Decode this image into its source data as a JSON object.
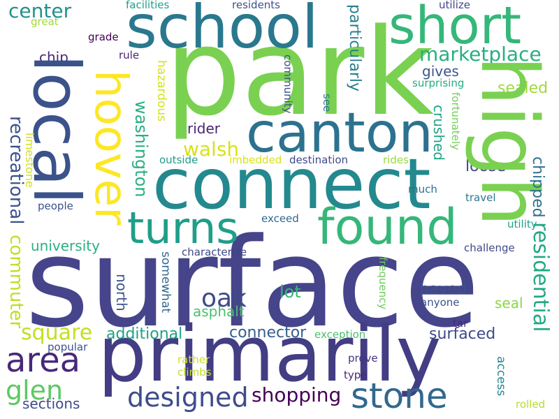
{
  "words": {
    "surface": {
      "text": "surface",
      "color": "#46448a"
    },
    "park": {
      "text": "park",
      "color": "#7ad151"
    },
    "connect": {
      "text": "connect",
      "color": "#23898e"
    },
    "primarily": {
      "text": "primarily",
      "color": "#433d84"
    },
    "local": {
      "text": "local",
      "color": "#3b528b"
    },
    "school": {
      "text": "school",
      "color": "#2a788e"
    },
    "high": {
      "text": "high",
      "color": "#7ad151"
    },
    "canton": {
      "text": "canton",
      "color": "#2c728e"
    },
    "hoover": {
      "text": "hoover",
      "color": "#fde725"
    },
    "short": {
      "text": "short",
      "color": "#35b779"
    },
    "found": {
      "text": "found",
      "color": "#35b779"
    },
    "turns": {
      "text": "turns",
      "color": "#1f9e89"
    },
    "stone": {
      "text": "stone",
      "color": "#31688e"
    },
    "area": {
      "text": "area",
      "color": "#482878"
    },
    "designed": {
      "text": "designed",
      "color": "#3e4c8a"
    },
    "residential": {
      "text": "residential",
      "color": "#22a884"
    },
    "oak": {
      "text": "oak",
      "color": "#3e4a89"
    },
    "commuter": {
      "text": "commuter",
      "color": "#bddf26"
    },
    "recreational": {
      "text": "recreational",
      "color": "#3b528b"
    },
    "marketplace": {
      "text": "marketplace",
      "color": "#29af7f"
    },
    "square": {
      "text": "square",
      "color": "#c2df23"
    },
    "glen": {
      "text": "glen",
      "color": "#5ec962"
    },
    "shopping": {
      "text": "shopping",
      "color": "#440154"
    },
    "walsh": {
      "text": "walsh",
      "color": "#d8e219"
    },
    "washington": {
      "text": "washington",
      "color": "#2ab07f"
    },
    "center": {
      "text": "center",
      "color": "#21918c"
    },
    "connector": {
      "text": "connector",
      "color": "#355f8d"
    },
    "surfaced": {
      "text": "surfaced",
      "color": "#3e4a89"
    },
    "additional": {
      "text": "additional",
      "color": "#1fa187"
    },
    "particularly": {
      "text": "particularly",
      "color": "#277f8e"
    },
    "chipped": {
      "text": "chipped",
      "color": "#2c718e"
    },
    "crushed": {
      "text": "crushed",
      "color": "#21a585"
    },
    "university": {
      "text": "university",
      "color": "#2ab07f"
    },
    "asphalt": {
      "text": "asphalt",
      "color": "#4ac16d"
    },
    "sealed": {
      "text": "sealed",
      "color": "#9fda3a"
    },
    "paved": {
      "text": "paved",
      "color": "#3b528b"
    },
    "loose": {
      "text": "loose",
      "color": "#3f4889"
    },
    "lot": {
      "text": "lot",
      "color": "#35b779"
    },
    "rider": {
      "text": "rider",
      "color": "#482475"
    },
    "north": {
      "text": "north",
      "color": "#3b528b"
    },
    "somewhat": {
      "text": "somewhat",
      "color": "#31688e"
    },
    "hazardous": {
      "text": "hazardous",
      "color": "#d2e21b"
    },
    "access": {
      "text": "access",
      "color": "#24868e"
    },
    "limestone": {
      "text": "limestone",
      "color": "#d0e11c"
    },
    "sections": {
      "text": "sections",
      "color": "#3e4c8a"
    },
    "seal": {
      "text": "seal",
      "color": "#8bd646"
    },
    "gives": {
      "text": "gives",
      "color": "#39568c"
    },
    "chip": {
      "text": "chip",
      "color": "#482878"
    },
    "fortunately": {
      "text": "fortunately",
      "color": "#70cf57"
    },
    "frequency": {
      "text": "frequency",
      "color": "#6ccd5a"
    },
    "facilities": {
      "text": "facilities",
      "color": "#1f9e89"
    },
    "residents": {
      "text": "residents",
      "color": "#3b528b"
    },
    "utilize": {
      "text": "utilize",
      "color": "#404688"
    },
    "great": {
      "text": "great",
      "color": "#a0da39"
    },
    "grade": {
      "text": "grade",
      "color": "#440154"
    },
    "rule": {
      "text": "rule",
      "color": "#482475"
    },
    "community": {
      "text": "community",
      "color": "#3b528b"
    },
    "see": {
      "text": "see",
      "color": "#2a788e"
    },
    "surprising": {
      "text": "surprising",
      "color": "#25ab82"
    },
    "outside": {
      "text": "outside",
      "color": "#1f9e89"
    },
    "imbedded": {
      "text": "imbedded",
      "color": "#d8e219"
    },
    "destination": {
      "text": "destination",
      "color": "#3f4889"
    },
    "rides": {
      "text": "rides",
      "color": "#98d83e"
    },
    "much": {
      "text": "much",
      "color": "#2e6e8e"
    },
    "travel": {
      "text": "travel",
      "color": "#2a788e"
    },
    "people": {
      "text": "people",
      "color": "#3b528b"
    },
    "exceed": {
      "text": "exceed",
      "color": "#31688e"
    },
    "utility": {
      "text": "utility",
      "color": "#1fa187"
    },
    "characterize": {
      "text": "characterize",
      "color": "#3f4889"
    },
    "challenge": {
      "text": "challenge",
      "color": "#3e4a89"
    },
    "anyone": {
      "text": "anyone",
      "color": "#3b528b"
    },
    "tar": {
      "text": "tar",
      "color": "#482878"
    },
    "exception": {
      "text": "exception",
      "color": "#4ac16d"
    },
    "popular": {
      "text": "popular",
      "color": "#3b528b"
    },
    "rather": {
      "text": "rather",
      "color": "#c8e020"
    },
    "climbs": {
      "text": "climbs",
      "color": "#c2df23"
    },
    "prove": {
      "text": "prove",
      "color": "#46337e"
    },
    "type": {
      "text": "type",
      "color": "#482878"
    },
    "rolled": {
      "text": "rolled",
      "color": "#b5de2b"
    }
  }
}
